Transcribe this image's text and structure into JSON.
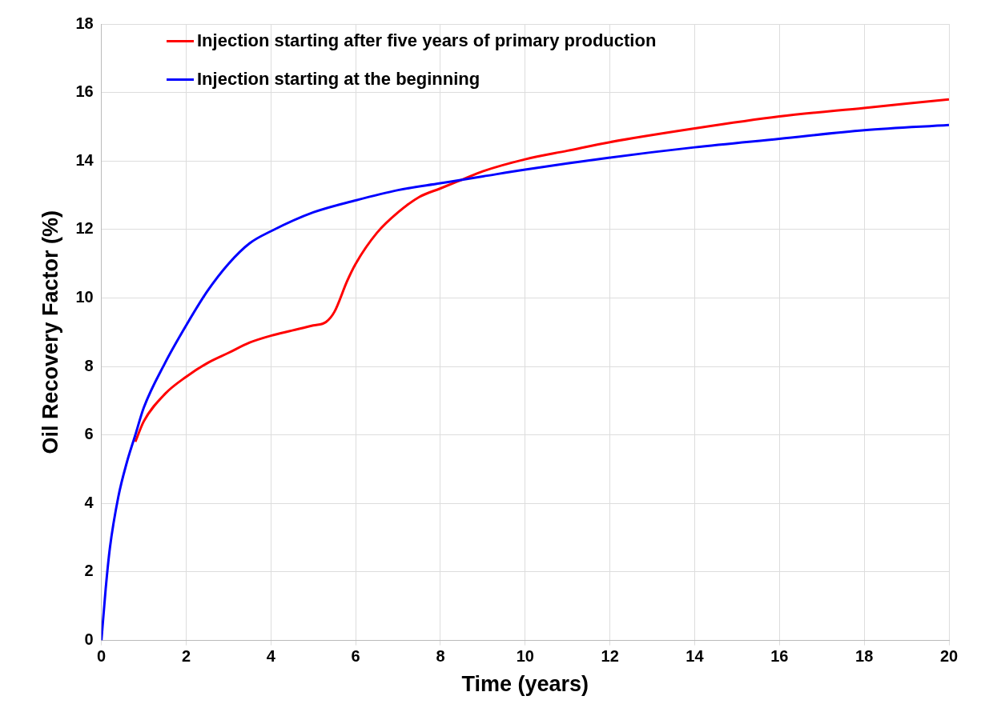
{
  "chart_data": {
    "type": "line",
    "xlabel": "Time (years)",
    "ylabel": "Oil Recovery Factor (%)",
    "xlim": [
      0,
      20
    ],
    "ylim": [
      0,
      18
    ],
    "xticks": [
      0,
      2,
      4,
      6,
      8,
      10,
      12,
      14,
      16,
      18,
      20
    ],
    "yticks": [
      0,
      2,
      4,
      6,
      8,
      10,
      12,
      14,
      16,
      18
    ],
    "grid": true,
    "legend": "top left",
    "marker": "none",
    "line_style": "solid",
    "series": [
      {
        "name": "Injection starting after five years of primary production",
        "color": "#ff0000",
        "x": [
          0.8,
          1,
          1.5,
          2,
          2.5,
          3,
          3.5,
          4,
          4.5,
          5,
          5.3,
          5.5,
          5.8,
          6,
          6.5,
          7,
          7.5,
          8,
          8.5,
          9,
          10,
          11,
          12,
          14,
          16,
          18,
          20
        ],
        "values": [
          5.8,
          6.4,
          7.2,
          7.7,
          8.1,
          8.4,
          8.7,
          8.9,
          9.05,
          9.2,
          9.3,
          9.6,
          10.5,
          11,
          11.9,
          12.5,
          12.95,
          13.2,
          13.45,
          13.7,
          14.05,
          14.3,
          14.55,
          14.95,
          15.3,
          15.55,
          15.8
        ]
      },
      {
        "name": "Injection starting at the beginning",
        "color": "#0000ff",
        "x": [
          0,
          0.1,
          0.2,
          0.4,
          0.6,
          0.8,
          1,
          1.5,
          2,
          2.5,
          3,
          3.5,
          4,
          5,
          6,
          7,
          8,
          9,
          10,
          12,
          14,
          16,
          18,
          20
        ],
        "values": [
          0,
          1.5,
          2.7,
          4.2,
          5.2,
          6.0,
          6.8,
          8.1,
          9.2,
          10.2,
          11.0,
          11.6,
          11.95,
          12.5,
          12.85,
          13.15,
          13.35,
          13.55,
          13.75,
          14.1,
          14.4,
          14.65,
          14.9,
          15.05
        ]
      }
    ]
  }
}
